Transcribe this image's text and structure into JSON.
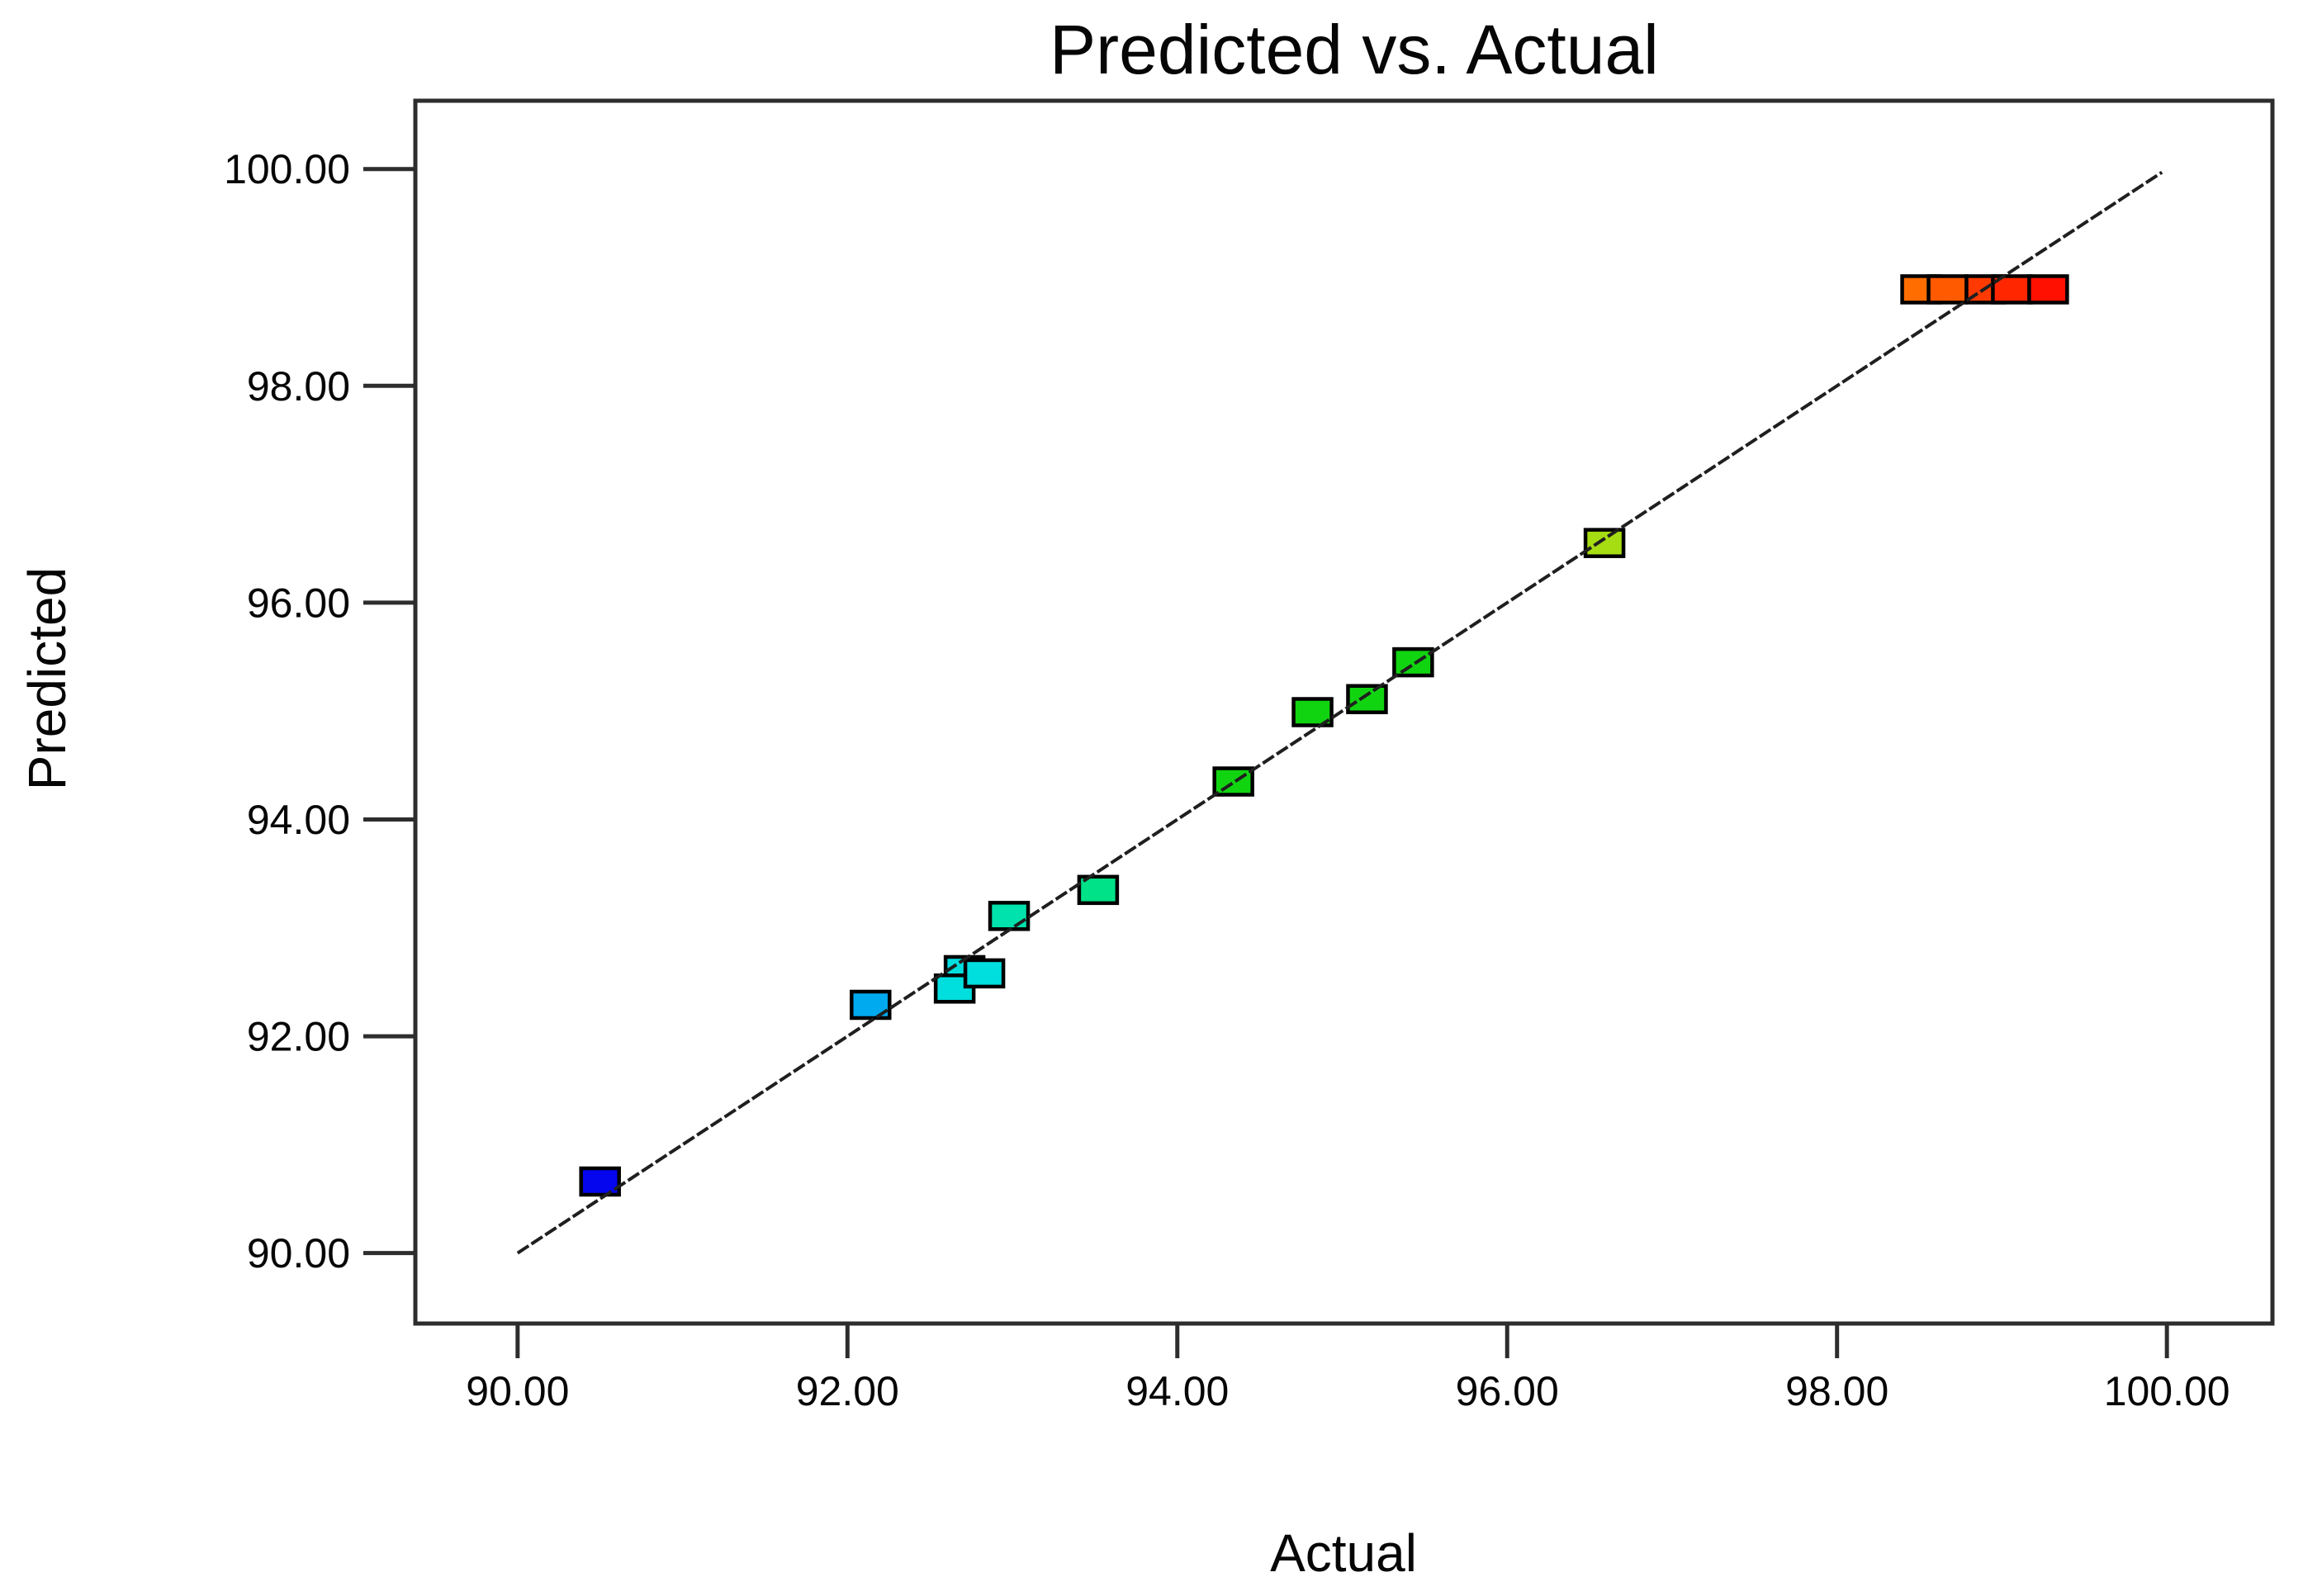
{
  "chart_data": {
    "type": "scatter",
    "title": "Predicted vs. Actual",
    "xlabel": "Actual",
    "ylabel": "Predicted",
    "xlim": [
      89.38,
      100.64
    ],
    "ylim": [
      89.35,
      100.63
    ],
    "grid": false,
    "legend": false,
    "background_color": "#ffffff",
    "axis_color": "#2d2d2d",
    "text_color": "#060606",
    "xticks": [
      {
        "value": 90.0,
        "label": "90.00"
      },
      {
        "value": 92.0,
        "label": "92.00"
      },
      {
        "value": 94.0,
        "label": "94.00"
      },
      {
        "value": 96.0,
        "label": "96.00"
      },
      {
        "value": 98.0,
        "label": "98.00"
      },
      {
        "value": 100.0,
        "label": "100.00"
      }
    ],
    "yticks": [
      {
        "value": 90.0,
        "label": "90.00"
      },
      {
        "value": 92.0,
        "label": "92.00"
      },
      {
        "value": 94.0,
        "label": "94.00"
      },
      {
        "value": 96.0,
        "label": "96.00"
      },
      {
        "value": 98.0,
        "label": "98.00"
      },
      {
        "value": 100.0,
        "label": "100.00"
      }
    ],
    "identity_line": {
      "x1": 90.0,
      "y1": 90.0,
      "x2": 99.97,
      "y2": 99.97,
      "color": "#1f1f1f"
    },
    "marker": {
      "shape": "square",
      "width": 46,
      "height": 32,
      "border_color": "#000000",
      "border_width": 4.5
    },
    "points": [
      {
        "actual": 90.5,
        "predicted": 90.66,
        "color": "#0505ee"
      },
      {
        "actual": 92.14,
        "predicted": 92.29,
        "color": "#00aaee"
      },
      {
        "actual": 92.71,
        "predicted": 92.61,
        "color": "#00dede"
      },
      {
        "actual": 92.65,
        "predicted": 92.44,
        "color": "#00dede"
      },
      {
        "actual": 92.83,
        "predicted": 92.58,
        "color": "#00dede"
      },
      {
        "actual": 92.98,
        "predicted": 93.11,
        "color": "#00e2ad"
      },
      {
        "actual": 93.52,
        "predicted": 93.35,
        "color": "#00e287"
      },
      {
        "actual": 94.34,
        "predicted": 94.35,
        "color": "#11d411"
      },
      {
        "actual": 94.82,
        "predicted": 94.99,
        "color": "#11d411"
      },
      {
        "actual": 95.15,
        "predicted": 95.11,
        "color": "#11d411"
      },
      {
        "actual": 95.43,
        "predicted": 95.45,
        "color": "#11d411"
      },
      {
        "actual": 96.59,
        "predicted": 96.55,
        "color": "#a6dc12"
      },
      {
        "actual": 98.51,
        "predicted": 98.89,
        "color": "#ff6c00"
      },
      {
        "actual": 98.67,
        "predicted": 98.89,
        "color": "#ff5a00"
      },
      {
        "actual": 98.9,
        "predicted": 98.89,
        "color": "#ff3a00"
      },
      {
        "actual": 99.06,
        "predicted": 98.89,
        "color": "#ff2600"
      },
      {
        "actual": 99.28,
        "predicted": 98.89,
        "color": "#ff1000"
      }
    ]
  }
}
